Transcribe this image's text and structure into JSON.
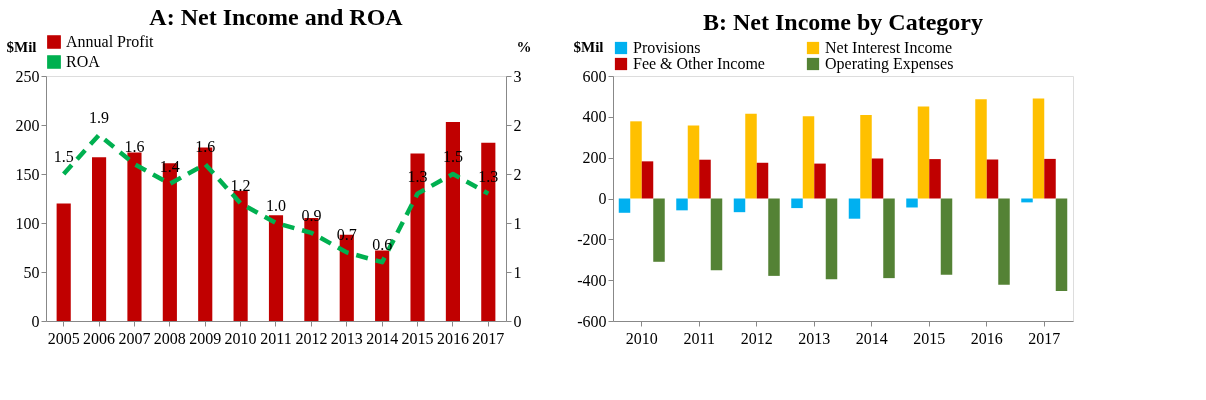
{
  "chart_data": [
    {
      "type": "bar",
      "title": "A: Net Income and ROA",
      "ylabel": "$Mil",
      "y2label": "%",
      "categories": [
        "2005",
        "2006",
        "2007",
        "2008",
        "2009",
        "2010",
        "2011",
        "2012",
        "2013",
        "2014",
        "2015",
        "2016",
        "2017"
      ],
      "series": [
        {
          "name": "Annual Profit",
          "color": "#c00000",
          "values": [
            120,
            167,
            172,
            161,
            177,
            133,
            108,
            105,
            88,
            72,
            171,
            203,
            182
          ]
        },
        {
          "name": "ROA",
          "type": "line",
          "axis": "y2",
          "color": "#00b050",
          "line_style": "dashed",
          "values": [
            1.5,
            1.9,
            1.6,
            1.4,
            1.6,
            1.2,
            1.0,
            0.9,
            0.7,
            0.6,
            1.3,
            1.5,
            1.3
          ],
          "value_labels": [
            "1.5",
            "1.9",
            "1.6",
            "1.4",
            "1.6",
            "1.2",
            "1.0",
            "0.9",
            "0.7",
            "0.6",
            "1.3",
            "1.5",
            "1.3"
          ]
        }
      ],
      "ylim": [
        0,
        250
      ],
      "yticks": [
        0,
        50,
        100,
        150,
        200,
        250
      ],
      "y2lim": [
        0,
        2.5
      ],
      "y2ticks": [
        0,
        {
          "value": 0.5,
          "label": "1"
        },
        {
          "value": 1,
          "label": "1"
        },
        {
          "value": 1.5,
          "label": "2"
        },
        {
          "value": 2,
          "label": "2"
        },
        {
          "value": 2.5,
          "label": "3"
        }
      ],
      "legend": "top",
      "grid": false
    },
    {
      "type": "bar",
      "title": "B: Net Income by Category",
      "ylabel": "$Mil",
      "categories": [
        "2010",
        "2011",
        "2012",
        "2013",
        "2014",
        "2015",
        "2016",
        "2017"
      ],
      "series": [
        {
          "name": "Provisions",
          "color": "#00b0f0",
          "values": [
            -70,
            -58,
            -67,
            -47,
            -99,
            -44,
            0,
            -19
          ]
        },
        {
          "name": "Net Interest Income",
          "color": "#ffc000",
          "values": [
            378,
            357,
            415,
            403,
            409,
            451,
            486,
            490
          ]
        },
        {
          "name": "Fee & Other Income",
          "color": "#c00000",
          "values": [
            182,
            190,
            175,
            171,
            196,
            193,
            191,
            194
          ]
        },
        {
          "name": "Operating Expenses",
          "color": "#548235",
          "values": [
            -310,
            -352,
            -379,
            -395,
            -390,
            -373,
            -423,
            -453
          ]
        }
      ],
      "ylim": [
        -600,
        600
      ],
      "yticks": [
        -600,
        -400,
        -200,
        0,
        200,
        400,
        600
      ],
      "legend": "top",
      "grid": false
    }
  ]
}
